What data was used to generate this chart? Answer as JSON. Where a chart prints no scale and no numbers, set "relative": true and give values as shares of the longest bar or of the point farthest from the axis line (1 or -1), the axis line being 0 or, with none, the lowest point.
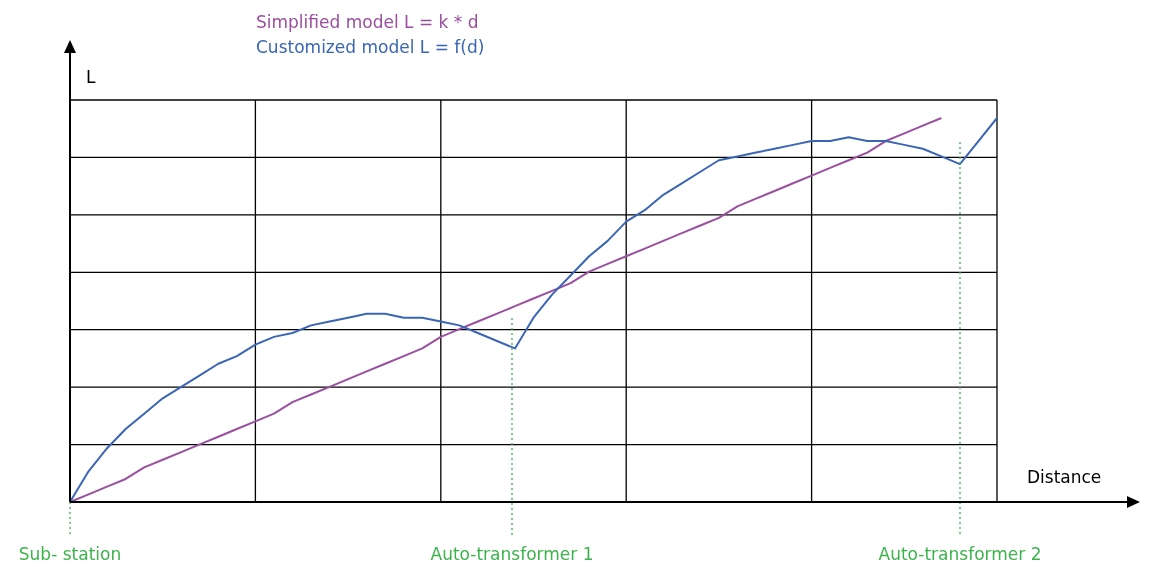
{
  "chart_data": {
    "type": "line",
    "relative": true,
    "xlabel": "Distance",
    "ylabel": "L",
    "grid": true,
    "categories": [
      null,
      null,
      null,
      null,
      null,
      null,
      null,
      null,
      null,
      null,
      null,
      null,
      null,
      null,
      null,
      null,
      null,
      null,
      null,
      null,
      null,
      null,
      null,
      null,
      null,
      null,
      null,
      null,
      null,
      null,
      null,
      null,
      null,
      null,
      null,
      null,
      null,
      null,
      null,
      null,
      null,
      null,
      null,
      null,
      null,
      null,
      null,
      null,
      null,
      null,
      null
    ],
    "series": [
      {
        "name": "Simplified model L = k * d",
        "color": "#9b4fa0",
        "values": [
          0,
          0.02,
          0.04,
          0.06,
          0.09,
          0.11,
          0.13,
          0.15,
          0.17,
          0.19,
          0.21,
          0.23,
          0.26,
          0.28,
          0.3,
          0.32,
          0.34,
          0.36,
          0.38,
          0.4,
          0.43,
          0.45,
          0.47,
          0.49,
          0.51,
          0.53,
          0.55,
          0.57,
          0.6,
          0.62,
          0.64,
          0.66,
          0.68,
          0.7,
          0.72,
          0.74,
          0.77,
          0.79,
          0.81,
          0.83,
          0.85,
          0.87,
          0.89,
          0.91,
          0.94,
          0.96,
          0.98,
          1,
          null,
          null,
          null
        ]
      },
      {
        "name": "Customized model L = f(d)",
        "color": "#3a66b5",
        "values": [
          0,
          0.08,
          0.14,
          0.19,
          0.23,
          0.27,
          0.3,
          0.33,
          0.36,
          0.38,
          0.41,
          0.43,
          0.44,
          0.46,
          0.47,
          0.48,
          0.49,
          0.49,
          0.48,
          0.48,
          0.47,
          0.46,
          0.44,
          0.42,
          0.4,
          0.48,
          0.54,
          0.59,
          0.64,
          0.68,
          0.73,
          0.76,
          0.8,
          0.83,
          0.86,
          0.89,
          0.9,
          0.91,
          0.92,
          0.93,
          0.94,
          0.94,
          0.95,
          0.94,
          0.94,
          0.93,
          0.92,
          0.9,
          0.88,
          0.94,
          1
        ]
      }
    ],
    "annotations": [
      "Sub- station",
      "Auto-transformer 1",
      "Auto-transformer 2"
    ]
  }
}
